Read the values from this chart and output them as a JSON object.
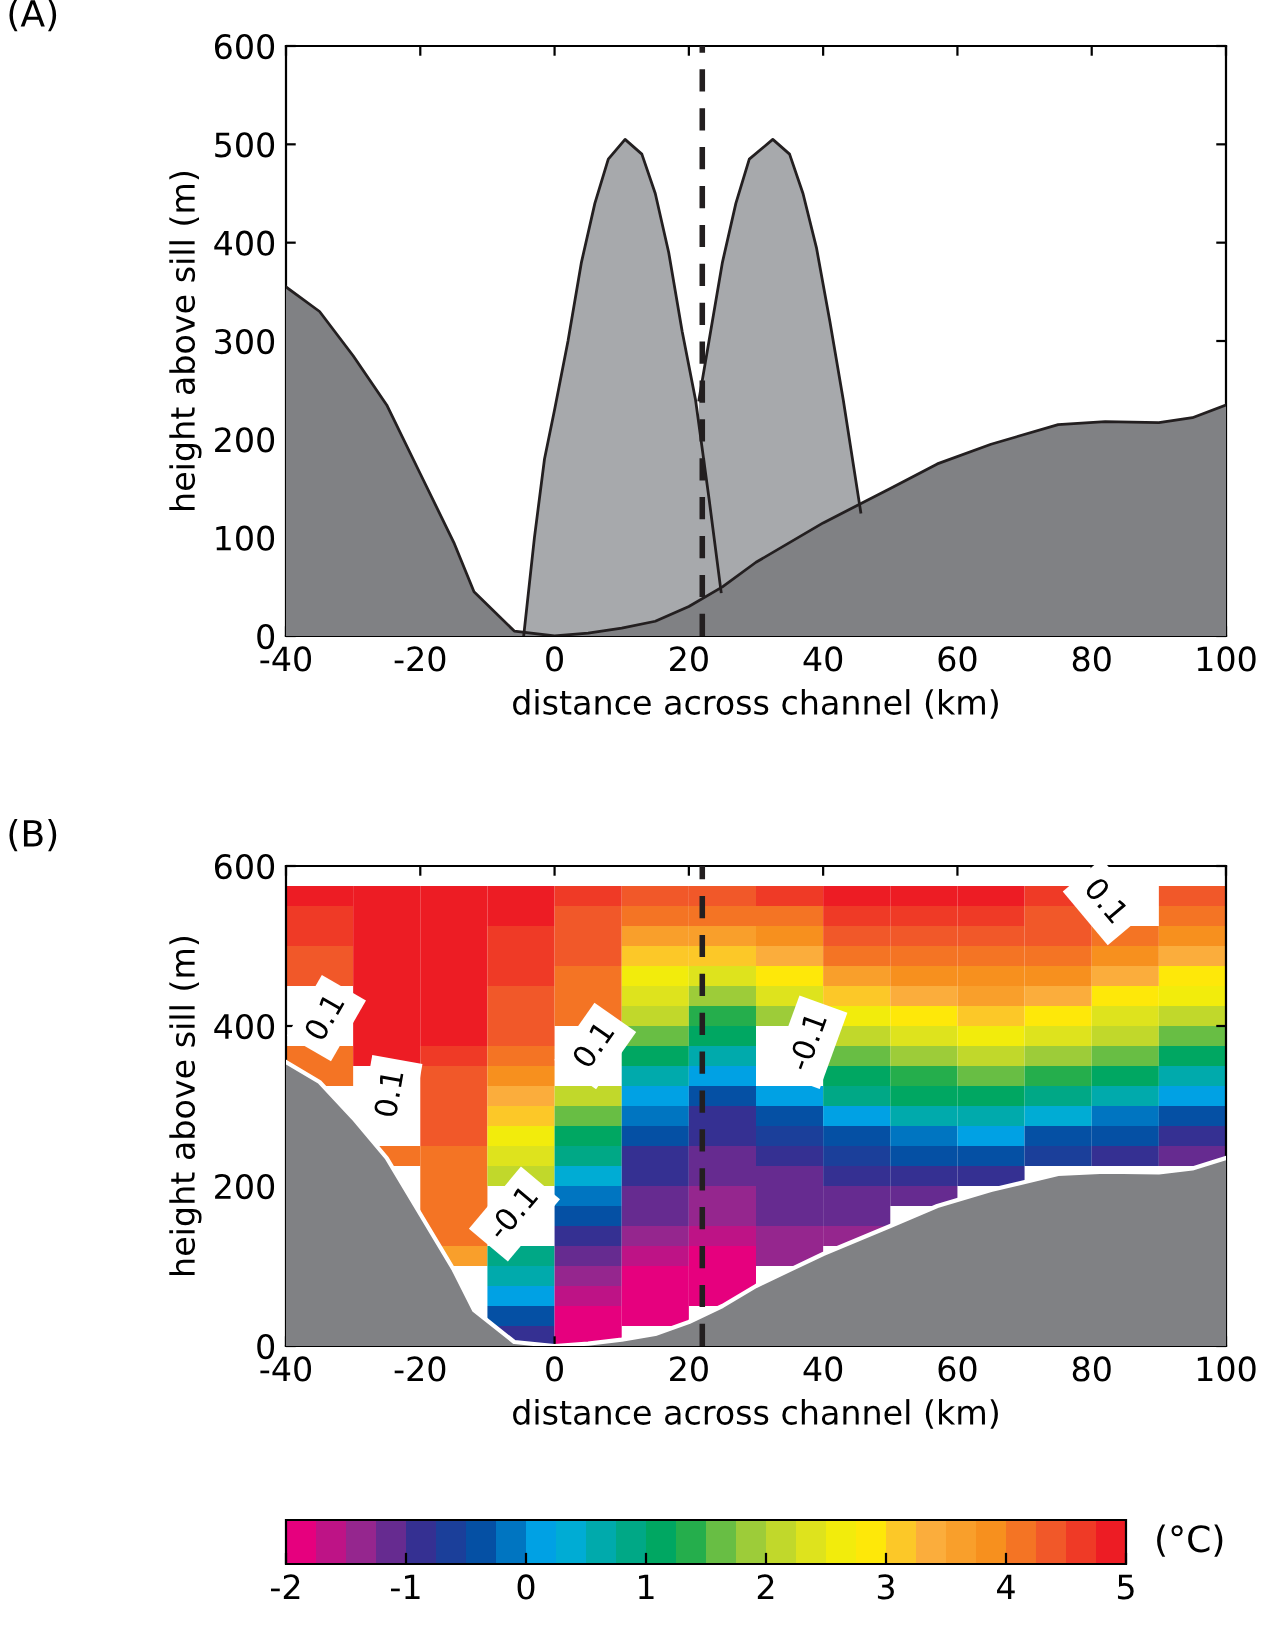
{
  "chart_data": [
    {
      "type": "area",
      "title": "(A)",
      "xlabel": "distance across channel (km)",
      "ylabel": "height above sill (m)",
      "xlim": [
        -40,
        100
      ],
      "ylim": [
        0,
        600
      ],
      "xticks": [
        -40,
        -20,
        0,
        20,
        40,
        60,
        80,
        100
      ],
      "yticks": [
        0,
        100,
        200,
        300,
        400,
        500,
        600
      ],
      "grid": false,
      "legend": false,
      "series": [
        {
          "color": "#a7a9ac",
          "x": [
            -4.6,
            -3,
            -1.5,
            0,
            2,
            4,
            6,
            8,
            10.5,
            13,
            15,
            17,
            19,
            21,
            23,
            24.8
          ],
          "values": [
            0,
            100,
            180,
            230,
            300,
            380,
            440,
            485,
            505,
            490,
            450,
            390,
            310,
            240,
            140,
            45
          ]
        },
        {
          "color": "#a7a9ac",
          "x": [
            21.5,
            23,
            25,
            27,
            29,
            32.5,
            35,
            37,
            39,
            41,
            43,
            45.6
          ],
          "values": [
            240,
            300,
            380,
            440,
            485,
            505,
            490,
            450,
            395,
            320,
            240,
            126
          ]
        },
        {
          "color": "#808184",
          "x": [
            -40,
            -35,
            -30,
            -25,
            -20,
            -15,
            -12,
            -6,
            0,
            5,
            10,
            15,
            20,
            25,
            30,
            40,
            50,
            57,
            65,
            75,
            82,
            90,
            95,
            100
          ],
          "values": [
            355,
            330,
            285,
            235,
            165,
            95,
            45,
            5,
            0,
            3,
            8,
            15,
            30,
            50,
            75,
            115,
            150,
            175,
            195,
            215,
            218,
            217,
            222,
            235
          ]
        }
      ],
      "ref_lines": [
        {
          "axis": "x",
          "value": 22,
          "label": null,
          "color": "#231f20",
          "line_style": "dashed"
        }
      ]
    },
    {
      "type": "heatmap",
      "title": "(B)",
      "xlabel": "distance across channel (km)",
      "ylabel": "height above sill (m)",
      "clabel": "(°C)",
      "xlim": [
        -40,
        100
      ],
      "ylim": [
        0,
        600
      ],
      "xticks": [
        -40,
        -20,
        0,
        20,
        40,
        60,
        80,
        100
      ],
      "yticks": [
        0,
        200,
        400,
        600
      ],
      "clim": [
        -2,
        5
      ],
      "cticks": [
        -2,
        -1,
        0,
        1,
        2,
        3,
        4,
        5
      ],
      "grid": false,
      "legend": false,
      "x": [
        -35,
        -25,
        -15,
        -5,
        5,
        15,
        25,
        35,
        45,
        55,
        65,
        75,
        85,
        95
      ],
      "y": [
        562.5,
        537.5,
        512.5,
        487.5,
        462.5,
        437.5,
        412.5,
        387.5,
        362.5,
        337.5,
        312.5,
        287.5,
        262.5,
        237.5,
        212.5,
        187.5,
        162.5,
        137.5,
        112.5,
        87.5,
        62.5,
        37.5,
        12.5
      ],
      "cells": [
        [
          4.8,
          4.8,
          4.8,
          4.8,
          4.5,
          4.3,
          4.4,
          4.5,
          4.8,
          4.8,
          4.8,
          4.7,
          null,
          4.3
        ],
        [
          4.7,
          4.8,
          4.8,
          4.8,
          4.4,
          4.0,
          4.0,
          4.2,
          4.5,
          4.6,
          4.6,
          4.4,
          null,
          4.1
        ],
        [
          4.6,
          4.8,
          4.8,
          4.7,
          4.3,
          3.6,
          3.5,
          3.8,
          4.3,
          4.3,
          4.4,
          4.3,
          4.1,
          3.8
        ],
        [
          4.4,
          4.8,
          4.8,
          4.6,
          4.3,
          3.1,
          3.0,
          3.3,
          4.0,
          4.2,
          4.2,
          4.2,
          3.8,
          3.3
        ],
        [
          4.3,
          4.8,
          4.8,
          4.5,
          4.2,
          2.6,
          2.4,
          2.8,
          3.6,
          3.8,
          3.9,
          3.8,
          3.3,
          2.9
        ],
        [
          null,
          4.8,
          4.8,
          4.4,
          4.1,
          2.3,
          1.9,
          2.3,
          3.1,
          3.3,
          3.5,
          3.3,
          2.9,
          2.5
        ],
        [
          null,
          4.8,
          4.8,
          4.3,
          4.0,
          2.0,
          1.4,
          1.9,
          2.6,
          2.8,
          3.0,
          2.8,
          2.4,
          2.1
        ],
        [
          null,
          4.8,
          4.8,
          4.3,
          null,
          1.6,
          1.0,
          null,
          2.2,
          2.3,
          2.5,
          2.4,
          2.0,
          1.6
        ],
        [
          4.2,
          4.8,
          4.6,
          4.1,
          null,
          1.1,
          0.5,
          null,
          1.7,
          1.9,
          2.1,
          1.9,
          1.5,
          1.1
        ],
        [
          4.1,
          null,
          4.4,
          3.9,
          null,
          0.6,
          0.0,
          null,
          1.2,
          1.4,
          1.5,
          1.4,
          1.0,
          0.6
        ],
        [
          null,
          null,
          4.3,
          3.4,
          2.2,
          0.2,
          -0.4,
          0.0,
          0.8,
          1.0,
          1.0,
          0.9,
          0.5,
          0.0
        ],
        [
          null,
          null,
          4.3,
          3.0,
          1.6,
          -0.2,
          -0.8,
          -0.4,
          0.2,
          0.5,
          0.5,
          0.4,
          -0.1,
          -0.5
        ],
        [
          null,
          null,
          4.3,
          2.6,
          1.2,
          -0.5,
          -1.0,
          -0.7,
          -0.3,
          -0.1,
          0.0,
          -0.3,
          -0.5,
          -0.9
        ],
        [
          null,
          4.1,
          4.2,
          2.3,
          0.8,
          -0.8,
          -1.1,
          -1.0,
          -0.6,
          -0.5,
          -0.5,
          -0.6,
          -0.9,
          -1.2
        ],
        [
          null,
          null,
          4.2,
          2.1,
          0.3,
          -1.0,
          -1.2,
          -1.1,
          -0.8,
          -0.8,
          -0.9,
          null,
          null,
          null
        ],
        [
          null,
          null,
          4.2,
          null,
          -0.1,
          -1.1,
          -1.3,
          -1.2,
          -1.1,
          -1.1,
          null,
          null,
          null,
          null
        ],
        [
          null,
          null,
          4.2,
          null,
          -0.5,
          -1.2,
          -1.4,
          -1.2,
          -1.2,
          null,
          null,
          null,
          null,
          null
        ],
        [
          null,
          null,
          4.0,
          null,
          -0.8,
          -1.3,
          -1.6,
          -1.3,
          -1.3,
          null,
          null,
          null,
          null,
          null
        ],
        [
          null,
          null,
          3.5,
          0.9,
          -1.1,
          -1.6,
          -1.8,
          -1.5,
          null,
          null,
          null,
          null,
          null,
          null
        ],
        [
          null,
          null,
          null,
          0.6,
          -1.3,
          -1.8,
          -1.9,
          null,
          null,
          null,
          null,
          null,
          null,
          null
        ],
        [
          null,
          null,
          null,
          0.2,
          -1.6,
          -1.9,
          -1.9,
          null,
          null,
          null,
          null,
          null,
          null,
          null
        ],
        [
          null,
          null,
          null,
          -0.3,
          -1.8,
          -1.9,
          null,
          null,
          null,
          null,
          null,
          null,
          null,
          null
        ],
        [
          null,
          null,
          null,
          -0.8,
          -1.9,
          null,
          null,
          null,
          null,
          null,
          null,
          null,
          null,
          null
        ]
      ],
      "series": [
        {
          "type": "area",
          "color": "#808184",
          "x": [
            -40,
            -35,
            -30,
            -25,
            -20,
            -15,
            -12,
            -6,
            0,
            5,
            10,
            15,
            20,
            25,
            30,
            40,
            50,
            57,
            65,
            75,
            82,
            90,
            95,
            100
          ],
          "values": [
            355,
            330,
            285,
            235,
            165,
            95,
            45,
            5,
            0,
            3,
            8,
            15,
            30,
            50,
            75,
            115,
            150,
            175,
            195,
            215,
            218,
            217,
            222,
            235
          ]
        }
      ],
      "ref_lines": [
        {
          "axis": "x",
          "value": 22,
          "label": null,
          "color": "#231f20",
          "line_style": "dashed"
        }
      ],
      "annotations": [
        "0.1",
        "0.1",
        "0.1",
        "-0.1",
        "-0.1",
        "0.1"
      ]
    }
  ]
}
